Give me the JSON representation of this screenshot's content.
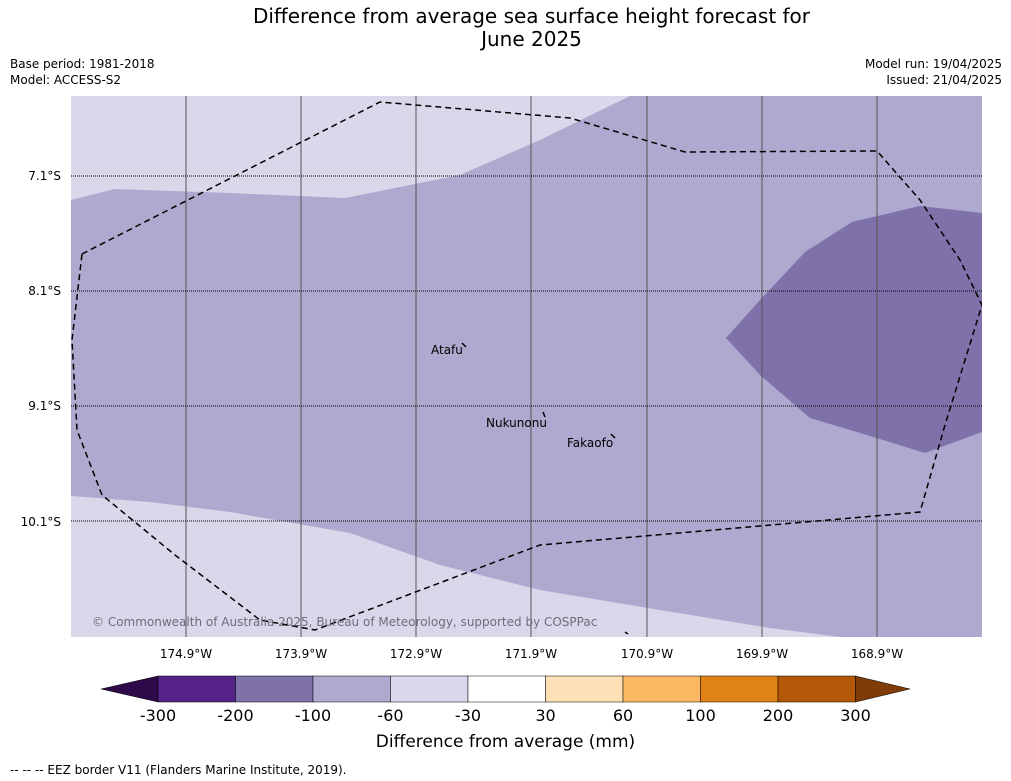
{
  "title_line1": "Difference from average sea surface height forecast for",
  "title_line2": "June 2025",
  "meta": {
    "base_period": "Base period: 1981-2018",
    "model": "Model: ACCESS-S2",
    "model_run": "Model run: 19/04/2025",
    "issued": "Issued: 21/04/2025"
  },
  "latitudes": [
    "7.1°S",
    "8.1°S",
    "9.1°S",
    "10.1°S"
  ],
  "longitudes": [
    "174.9°W",
    "173.9°W",
    "172.9°W",
    "171.9°W",
    "170.9°W",
    "169.9°W",
    "168.9°W"
  ],
  "places": [
    "Atafu",
    "Nukunonu",
    "Fakaofo"
  ],
  "copyright": "© Commonwealth of Australia 2025, Bureau of Meteorology, supported by COSPPac",
  "colorbar": {
    "ticks": [
      "-300",
      "-200",
      "-100",
      "-60",
      "-30",
      "30",
      "60",
      "100",
      "200",
      "300"
    ],
    "colors": [
      "#2e0a4b",
      "#552288",
      "#7f72aa",
      "#aea9cf",
      "#d8d8ea",
      "#ffffff",
      "#fee0b6",
      "#fdb863",
      "#e08214",
      "#b35806",
      "#7f3b08"
    ],
    "label": "Difference from average (mm)"
  },
  "map_colors": {
    "light": "#d8d8ea",
    "medium": "#aea9cf",
    "dark": "#7f72aa"
  },
  "footnote": "-- -- -- EEZ border V11 (Flanders Marine Institute, 2019)."
}
